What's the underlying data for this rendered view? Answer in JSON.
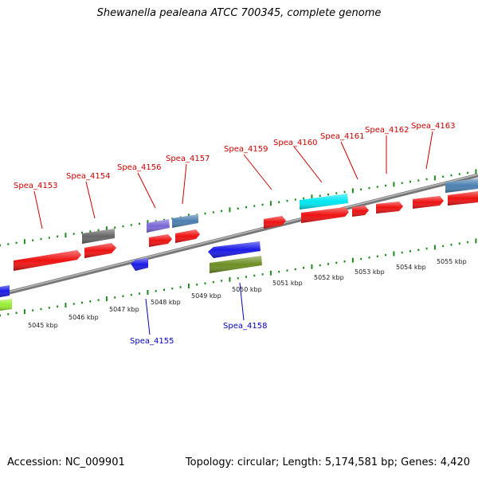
{
  "title": "Shewanella pealeana ATCC 700345, complete genome",
  "footer": {
    "accession": "Accession: NC_009901",
    "info": "Topology: circular; Length: 5,174,581 bp; Genes: 4,420"
  },
  "colors": {
    "red": "#ee1111",
    "blue": "#1a1ae6",
    "olive": "#6b8e23",
    "gray": "#666666",
    "slate_purple": "#7a68d6",
    "steel_blue": "#4a7fb0",
    "cyan": "#00e6f0",
    "lime": "#99ee33",
    "tick": "#1e8a1e",
    "label_red": "#cc0000",
    "label_blue": "#0000bb"
  },
  "scale_labels": [
    "5045 kbp",
    "5046 kbp",
    "5047 kbp",
    "5048 kbp",
    "5049 kbp",
    "5050 kbp",
    "5051 kbp",
    "5052 kbp",
    "5053 kbp",
    "5054 kbp",
    "5055 kbp"
  ],
  "gene_labels": {
    "top": [
      "Spea_4153",
      "Spea_4154",
      "Spea_4156",
      "Spea_4157",
      "Spea_4159",
      "Spea_4160",
      "Spea_4161",
      "Spea_4162",
      "Spea_4163"
    ],
    "bottom": [
      "Spea_4155",
      "Spea_4158"
    ]
  }
}
